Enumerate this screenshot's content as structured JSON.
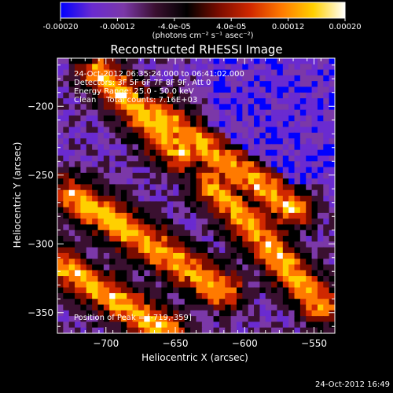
{
  "colorbar": {
    "ticks": [
      "-0.00020",
      "-0.00012",
      "-4.0e-05",
      "4.0e-05",
      "0.00012",
      "0.00020"
    ],
    "units": "(photons cm⁻² s⁻¹ asec⁻²)",
    "colors": [
      "#0000ff",
      "#6a2bd0",
      "#7b38a8",
      "#3a1030",
      "#000000",
      "#7a0c00",
      "#d02800",
      "#ff7a00",
      "#ffd000",
      "#ffffff"
    ]
  },
  "chart_data": {
    "type": "heatmap",
    "title": "Reconstructed RHESSI Image",
    "xlabel": "Heliocentric X (arcsec)",
    "ylabel": "Heliocentric Y (arcsec)",
    "xlim": [
      -735,
      -535
    ],
    "ylim": [
      -365,
      -165
    ],
    "x_ticks": [
      -700,
      -650,
      -600,
      -550
    ],
    "y_ticks": [
      -200,
      -250,
      -300,
      -350
    ],
    "x_tick_labels": [
      "−700",
      "−650",
      "−600",
      "−550"
    ],
    "y_tick_labels": [
      "−200",
      "−250",
      "−300",
      "−350"
    ],
    "value_range": [
      -0.0002,
      0.0002
    ],
    "annotations": [
      "24-Oct-2012 06:35:24.000 to 06:41:02.000",
      "Detectors: 3F 5F 6F 7F 8F 9F, Att 0",
      "Energy Range: 25.0 - 50.0 keV",
      "Clean    Total counts: 7.16E+03"
    ],
    "peak_label": "Position of Peak = [-719,-359]",
    "peak": [
      -719,
      -359
    ]
  },
  "footer": {
    "timestamp": "24-Oct-2012 16:49"
  }
}
